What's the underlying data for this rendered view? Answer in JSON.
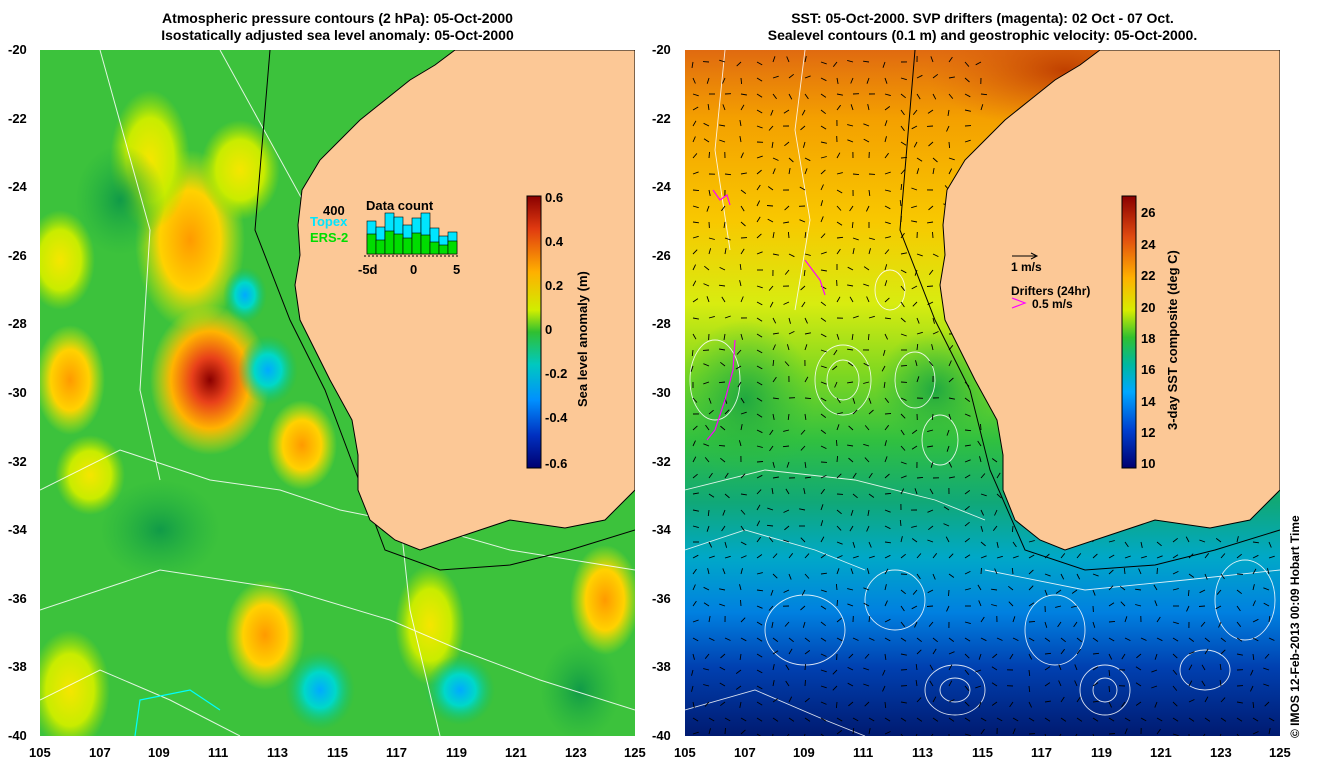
{
  "left_panel": {
    "title_line1": "Atmospheric pressure contours (2 hPa): 05-Oct-2000",
    "title_line2": "Isostatically adjusted sea level anomaly: 05-Oct-2000",
    "colorbar_label": "Sea level anomaly (m)",
    "colorbar_ticks": [
      "0.6",
      "0.4",
      "0.2",
      "0",
      "-0.2",
      "-0.4",
      "-0.6"
    ],
    "inset": {
      "title": "Data count",
      "count_label": "400",
      "series1": "Topex",
      "series2": "ERS-2",
      "x_ticks": [
        "-5d",
        "0",
        "5"
      ],
      "topex_color": "#00e5ff",
      "ers_color": "#00dd00"
    }
  },
  "right_panel": {
    "title_line1": "SST: 05-Oct-2000. SVP drifters (magenta): 02 Oct - 07 Oct.",
    "title_line2": "Sealevel contours (0.1 m) and geostrophic velocity: 05-Oct-2000.",
    "colorbar_label": "3-day SST composite (deg C)",
    "colorbar_ticks": [
      "26",
      "24",
      "22",
      "20",
      "18",
      "16",
      "14",
      "12",
      "10"
    ],
    "vector_scale_label": "1 m/s",
    "drifters_label": "Drifters (24hr)",
    "drifters_scale": "0.5 m/s",
    "drifter_color": "#ff00ff"
  },
  "y_ticks": [
    "-20",
    "-22",
    "-24",
    "-26",
    "-28",
    "-30",
    "-32",
    "-34",
    "-36",
    "-38",
    "-40"
  ],
  "x_ticks": [
    "105",
    "107",
    "109",
    "111",
    "113",
    "115",
    "117",
    "119",
    "121",
    "123",
    "125"
  ],
  "credit": "© IMOS 12-Feb-2013 00:09 Hobart Time",
  "colors": {
    "land": "#fcc896"
  }
}
